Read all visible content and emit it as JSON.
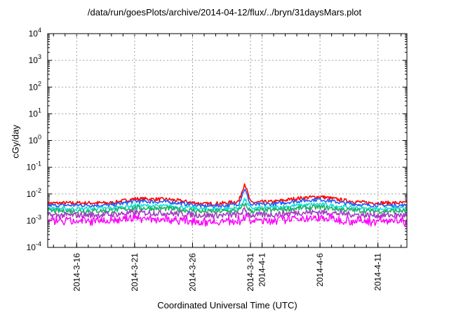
{
  "chart_data": {
    "type": "line",
    "title": "/data/run/goesPlots/archive/2014-04-12/flux/../bryn/31daysMars.plot",
    "xlabel": "Coordinated Universal Time (UTC)",
    "ylabel": "cGy/day",
    "yscale": "log",
    "ylim": [
      0.0001,
      10000
    ],
    "xlim": [
      "2014-03-13 12:00",
      "2014-04-13 12:00"
    ],
    "grid": true,
    "x_tick_labels": [
      "2014-3-16",
      "2014-3-21",
      "2014-3-26",
      "2014-3-31",
      "2014-4-1",
      "2014-4-6",
      "2014-4-11"
    ],
    "x_tick_dates": [
      "2014-03-16",
      "2014-03-21",
      "2014-03-26",
      "2014-03-31",
      "2014-04-01",
      "2014-04-06",
      "2014-04-11"
    ],
    "y_tick_labels": [
      {
        "base": "10",
        "exp": "-4"
      },
      {
        "base": "10",
        "exp": "-3"
      },
      {
        "base": "10",
        "exp": "-2"
      },
      {
        "base": "10",
        "exp": "-1"
      },
      {
        "base": "10",
        "exp": "0"
      },
      {
        "base": "10",
        "exp": "1"
      },
      {
        "base": "10",
        "exp": "2"
      },
      {
        "base": "10",
        "exp": "3"
      },
      {
        "base": "10",
        "exp": "4"
      }
    ],
    "series": [
      {
        "color": "#ff0000",
        "x": [
          "2014-03-13",
          "2014-03-16",
          "2014-03-19",
          "2014-03-21",
          "2014-03-24",
          "2014-03-27",
          "2014-03-29",
          "2014-03-30",
          "2014-03-30 12:00",
          "2014-03-31",
          "2014-04-02",
          "2014-04-04",
          "2014-04-06",
          "2014-04-08",
          "2014-04-10",
          "2014-04-13"
        ],
        "y": [
          0.0045,
          0.0046,
          0.0046,
          0.0066,
          0.0062,
          0.0042,
          0.0046,
          0.0054,
          0.026,
          0.0048,
          0.0051,
          0.0068,
          0.008,
          0.0058,
          0.0047,
          0.0046
        ]
      },
      {
        "color": "#1f5fff",
        "x": [
          "2014-03-13",
          "2014-03-16",
          "2014-03-19",
          "2014-03-21",
          "2014-03-24",
          "2014-03-27",
          "2014-03-29",
          "2014-03-30",
          "2014-03-30 12:00",
          "2014-03-31",
          "2014-04-02",
          "2014-04-04",
          "2014-04-06",
          "2014-04-08",
          "2014-04-10",
          "2014-04-13"
        ],
        "y": [
          0.0037,
          0.0038,
          0.0038,
          0.0053,
          0.005,
          0.0035,
          0.0037,
          0.0043,
          0.016,
          0.0039,
          0.0042,
          0.0054,
          0.0063,
          0.0046,
          0.0038,
          0.0037
        ]
      },
      {
        "color": "#19e0d4",
        "x": [
          "2014-03-13",
          "2014-03-16",
          "2014-03-19",
          "2014-03-21",
          "2014-03-24",
          "2014-03-27",
          "2014-03-29",
          "2014-03-30",
          "2014-03-30 12:00",
          "2014-03-31",
          "2014-04-02",
          "2014-04-04",
          "2014-04-06",
          "2014-04-08",
          "2014-04-10",
          "2014-04-13"
        ],
        "y": [
          0.0028,
          0.0028,
          0.0029,
          0.0037,
          0.0035,
          0.0027,
          0.0028,
          0.003,
          0.0065,
          0.0029,
          0.0031,
          0.0037,
          0.0041,
          0.0033,
          0.0028,
          0.0028
        ]
      },
      {
        "color": "#22b06a",
        "x": [
          "2014-03-13",
          "2014-03-16",
          "2014-03-19",
          "2014-03-21",
          "2014-03-24",
          "2014-03-27",
          "2014-03-29",
          "2014-03-30",
          "2014-03-30 12:00",
          "2014-03-31",
          "2014-04-02",
          "2014-04-04",
          "2014-04-06",
          "2014-04-08",
          "2014-04-10",
          "2014-04-13"
        ],
        "y": [
          0.0023,
          0.0023,
          0.0024,
          0.003,
          0.0028,
          0.0022,
          0.0023,
          0.0024,
          0.0042,
          0.0023,
          0.0025,
          0.0029,
          0.0032,
          0.0026,
          0.0023,
          0.0023
        ]
      },
      {
        "color": "#a040c0",
        "x": [
          "2014-03-13",
          "2014-03-16",
          "2014-03-19",
          "2014-03-21",
          "2014-03-24",
          "2014-03-27",
          "2014-03-29",
          "2014-03-30",
          "2014-03-30 12:00",
          "2014-03-31",
          "2014-04-02",
          "2014-04-04",
          "2014-04-06",
          "2014-04-08",
          "2014-04-10",
          "2014-04-13"
        ],
        "y": [
          0.0016,
          0.0016,
          0.0017,
          0.002,
          0.0019,
          0.0016,
          0.0016,
          0.0017,
          0.0025,
          0.0016,
          0.0017,
          0.002,
          0.0021,
          0.0018,
          0.0016,
          0.0016
        ]
      },
      {
        "color": "#ff00ff",
        "x": [
          "2014-03-13",
          "2014-03-16",
          "2014-03-19",
          "2014-03-21",
          "2014-03-24",
          "2014-03-27",
          "2014-03-29",
          "2014-03-30",
          "2014-03-30 12:00",
          "2014-03-31",
          "2014-04-02",
          "2014-04-04",
          "2014-04-06",
          "2014-04-08",
          "2014-04-10",
          "2014-04-13"
        ],
        "y": [
          0.0011,
          0.0011,
          0.0012,
          0.0014,
          0.0013,
          0.0011,
          0.0011,
          0.0012,
          0.0016,
          0.0011,
          0.0012,
          0.0014,
          0.0015,
          0.0012,
          0.0011,
          0.0011
        ]
      }
    ]
  }
}
